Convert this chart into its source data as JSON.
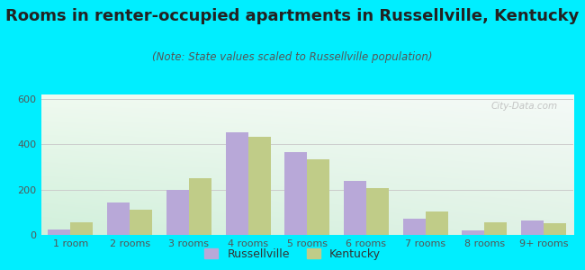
{
  "title": "Rooms in renter-occupied apartments in Russellville, Kentucky",
  "subtitle": "(Note: State values scaled to Russellville population)",
  "categories": [
    "1 room",
    "2 rooms",
    "3 rooms",
    "4 rooms",
    "5 rooms",
    "6 rooms",
    "7 rooms",
    "8 rooms",
    "9+ rooms"
  ],
  "russellville": [
    25,
    145,
    200,
    455,
    365,
    240,
    70,
    20,
    65
  ],
  "kentucky": [
    55,
    110,
    250,
    435,
    335,
    205,
    105,
    55,
    50
  ],
  "bar_color_russellville": "#b8a8d8",
  "bar_color_kentucky": "#c0cc88",
  "background_outer": "#00eeff",
  "ylim": [
    0,
    620
  ],
  "yticks": [
    0,
    200,
    400,
    600
  ],
  "title_fontsize": 13,
  "subtitle_fontsize": 8.5,
  "tick_fontsize": 8,
  "legend_fontsize": 9,
  "watermark": "City-Data.com"
}
